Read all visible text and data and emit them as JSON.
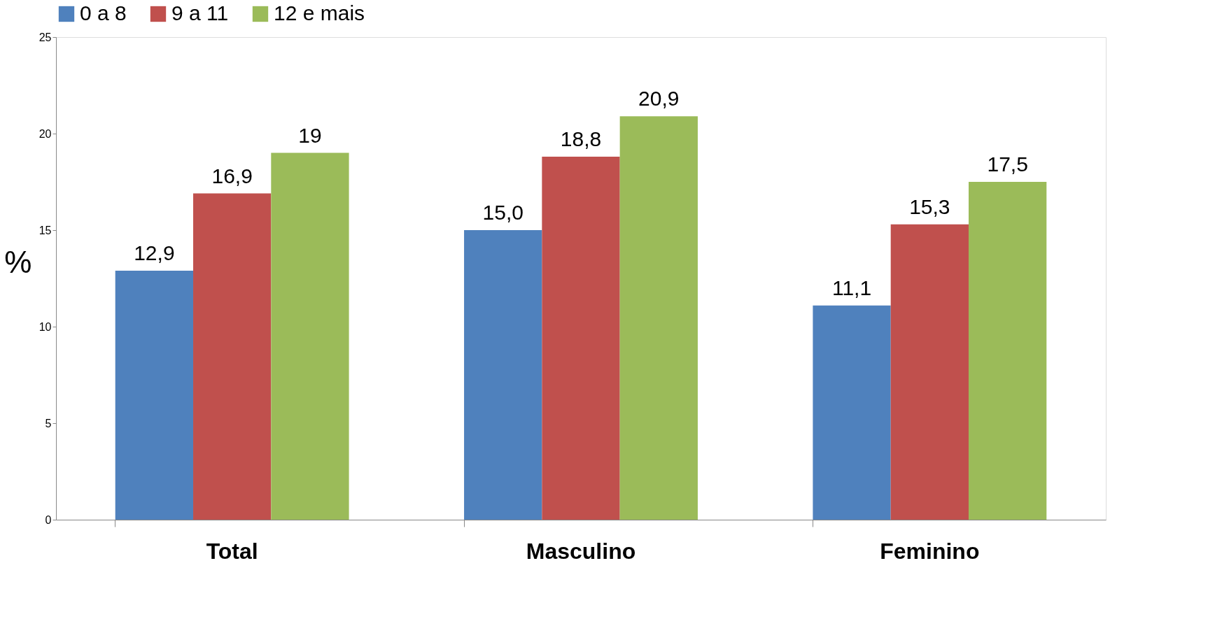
{
  "chart_data": {
    "type": "bar",
    "ylabel": "%",
    "categories": [
      "Total",
      "Masculino",
      "Feminino"
    ],
    "series": [
      {
        "name": "0 a 8",
        "color": "#4f81bd",
        "values": [
          12.9,
          15.0,
          11.1
        ],
        "value_labels": [
          "12,9",
          "15,0",
          "11,1"
        ]
      },
      {
        "name": "9 a 11",
        "color": "#c0504d",
        "values": [
          16.9,
          18.8,
          15.3
        ],
        "value_labels": [
          "16,9",
          "18,8",
          "15,3"
        ]
      },
      {
        "name": "12 e mais",
        "color": "#9bbb59",
        "values": [
          19,
          20.9,
          17.5
        ],
        "value_labels": [
          "19",
          "20,9",
          "17,5"
        ]
      }
    ],
    "ylim": [
      0,
      25
    ],
    "yticks": [
      0,
      5,
      10,
      15,
      20,
      25
    ],
    "grid": false,
    "legend": "top"
  }
}
